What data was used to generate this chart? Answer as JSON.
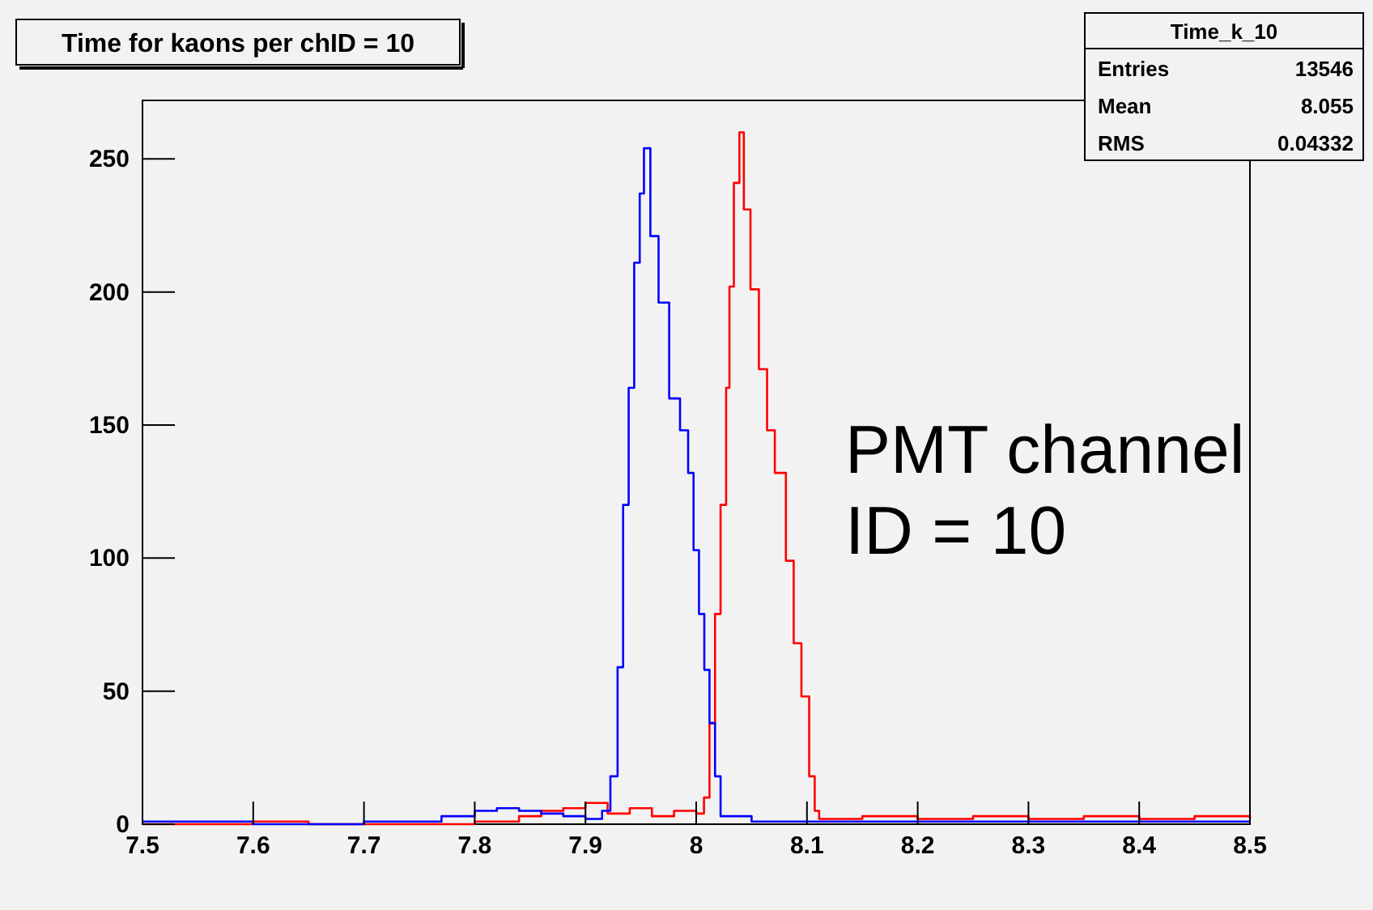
{
  "chart_data": {
    "type": "step",
    "title": "Time for kaons per chID = 10",
    "xlim": [
      7.5,
      8.5
    ],
    "xticks": [
      7.5,
      7.6,
      7.7,
      7.8,
      7.9,
      8,
      8.1,
      8.2,
      8.3,
      8.4,
      8.5
    ],
    "ylim": [
      0,
      272
    ],
    "yticks": [
      0,
      50,
      100,
      150,
      200,
      250
    ],
    "grid": false,
    "annotations": [
      "Time_k_10",
      "Entries",
      "13546",
      "Mean",
      "8.055",
      "RMS",
      "0.04332",
      "PMT channel\nID = 10"
    ],
    "series": [
      {
        "color": "#ff0000",
        "x": [
          7.5,
          7.6,
          7.65,
          7.7,
          7.8,
          7.84,
          7.86,
          7.88,
          7.9,
          7.92,
          7.94,
          7.96,
          7.98,
          8.0,
          8.007,
          8.012,
          8.017,
          8.022,
          8.027,
          8.03,
          8.034,
          8.039,
          8.043,
          8.049,
          8.0566,
          8.064,
          8.071,
          8.081,
          8.088,
          8.095,
          8.102,
          8.107,
          8.111,
          8.15,
          8.2,
          8.25,
          8.3,
          8.35,
          8.4,
          8.45,
          8.5
        ],
        "values": [
          0,
          1,
          0,
          0,
          1,
          3,
          5,
          6,
          8,
          4,
          6,
          3,
          5,
          4,
          10,
          38,
          79,
          120,
          164,
          202,
          241,
          260,
          231,
          201,
          171,
          148,
          132,
          99,
          68,
          48,
          18,
          5,
          2,
          3,
          2,
          3,
          2,
          3,
          2,
          3,
          2
        ]
      },
      {
        "color": "#0000ff",
        "x": [
          7.5,
          7.6,
          7.7,
          7.77,
          7.8,
          7.82,
          7.84,
          7.86,
          7.88,
          7.9,
          7.915,
          7.9225,
          7.929,
          7.934,
          7.939,
          7.944,
          7.949,
          7.9528,
          7.9586,
          7.966,
          7.9756,
          7.9854,
          7.9927,
          7.9976,
          8.0025,
          8.0073,
          8.012,
          8.017,
          8.022,
          8.05,
          8.1,
          8.15,
          8.2,
          8.25,
          8.3,
          8.35,
          8.4,
          8.45,
          8.5
        ],
        "values": [
          1,
          0,
          1,
          3,
          5,
          6,
          5,
          4,
          3,
          2,
          5,
          18,
          59,
          120,
          164,
          211,
          237,
          254,
          221,
          196,
          160,
          148,
          132,
          103,
          79,
          58,
          38,
          18,
          3,
          1,
          1,
          1,
          1,
          1,
          1,
          1,
          1,
          1,
          1
        ]
      }
    ]
  }
}
